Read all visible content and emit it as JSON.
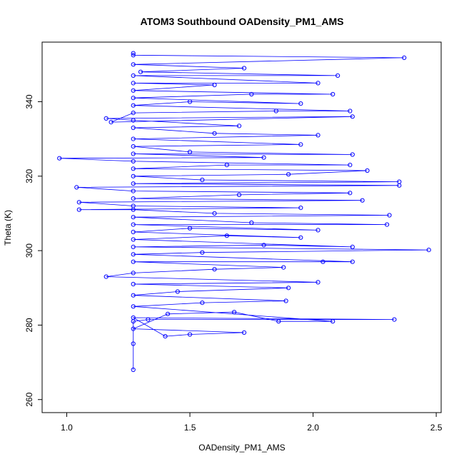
{
  "chart_data": {
    "type": "scatter",
    "title": "ATOM3 Southbound OADensity_PM1_AMS",
    "xlabel": "OADensity_PM1_AMS",
    "ylabel": "Theta (K)",
    "xlim": [
      0.9,
      2.52
    ],
    "ylim": [
      256.5,
      356
    ],
    "x_ticks": [
      1.0,
      1.5,
      2.0,
      2.5
    ],
    "x_tick_labels": [
      "1.0",
      "1.5",
      "2.0",
      "2.5"
    ],
    "y_ticks": [
      260,
      280,
      300,
      320,
      340
    ],
    "y_tick_labels": [
      "260",
      "280",
      "300",
      "320",
      "340"
    ],
    "grid": false,
    "legend": "none",
    "marker": "open-circle",
    "connected": true,
    "series_color": "#0000ff",
    "series": [
      {
        "points": [
          [
            1.27,
            268
          ],
          [
            1.27,
            275
          ],
          [
            1.27,
            281
          ],
          [
            1.33,
            281.5
          ],
          [
            2.33,
            281.5
          ],
          [
            1.27,
            282
          ],
          [
            1.4,
            277
          ],
          [
            1.5,
            277.5
          ],
          [
            1.72,
            278
          ],
          [
            1.27,
            279
          ],
          [
            1.41,
            283
          ],
          [
            1.68,
            283.5
          ],
          [
            1.86,
            281
          ],
          [
            2.08,
            281
          ],
          [
            1.27,
            285
          ],
          [
            1.55,
            286
          ],
          [
            1.89,
            286.5
          ],
          [
            1.27,
            288
          ],
          [
            1.45,
            289
          ],
          [
            1.9,
            290
          ],
          [
            1.27,
            291
          ],
          [
            2.02,
            291.5
          ],
          [
            1.16,
            293
          ],
          [
            1.27,
            294
          ],
          [
            1.6,
            295
          ],
          [
            1.88,
            295.5
          ],
          [
            1.27,
            297
          ],
          [
            2.04,
            297
          ],
          [
            2.16,
            297
          ],
          [
            1.27,
            299
          ],
          [
            1.55,
            299.5
          ],
          [
            2.47,
            300.2
          ],
          [
            1.27,
            301
          ],
          [
            1.8,
            301.5
          ],
          [
            2.16,
            301
          ],
          [
            1.27,
            303
          ],
          [
            1.65,
            304
          ],
          [
            1.95,
            303.5
          ],
          [
            1.27,
            305
          ],
          [
            1.5,
            306
          ],
          [
            2.02,
            305.5
          ],
          [
            1.27,
            307
          ],
          [
            2.3,
            307
          ],
          [
            1.75,
            307.5
          ],
          [
            1.27,
            309
          ],
          [
            2.31,
            309.5
          ],
          [
            1.6,
            310
          ],
          [
            1.27,
            311
          ],
          [
            1.05,
            311
          ],
          [
            1.95,
            311.5
          ],
          [
            1.27,
            312
          ],
          [
            1.05,
            313
          ],
          [
            2.2,
            313.5
          ],
          [
            1.27,
            314
          ],
          [
            1.7,
            315
          ],
          [
            2.15,
            315.5
          ],
          [
            1.27,
            316
          ],
          [
            1.04,
            317
          ],
          [
            2.35,
            317.5
          ],
          [
            1.27,
            318
          ],
          [
            2.35,
            318.5
          ],
          [
            1.55,
            319
          ],
          [
            1.27,
            320
          ],
          [
            1.9,
            320.5
          ],
          [
            2.22,
            321.5
          ],
          [
            1.27,
            322
          ],
          [
            1.65,
            323
          ],
          [
            2.15,
            323
          ],
          [
            1.27,
            324
          ],
          [
            0.97,
            324.8
          ],
          [
            1.8,
            325
          ],
          [
            1.27,
            326
          ],
          [
            2.16,
            325.8
          ],
          [
            1.5,
            326.5
          ],
          [
            1.27,
            328
          ],
          [
            1.95,
            328.5
          ],
          [
            1.27,
            330
          ],
          [
            2.02,
            331
          ],
          [
            1.6,
            331.5
          ],
          [
            1.27,
            333
          ],
          [
            1.7,
            333.5
          ],
          [
            1.27,
            335
          ],
          [
            1.16,
            335.5
          ],
          [
            2.16,
            336
          ],
          [
            1.18,
            334.5
          ],
          [
            1.27,
            337
          ],
          [
            1.85,
            337.5
          ],
          [
            2.15,
            337.5
          ],
          [
            1.27,
            339
          ],
          [
            1.5,
            340
          ],
          [
            1.95,
            339.5
          ],
          [
            1.27,
            341
          ],
          [
            1.75,
            342
          ],
          [
            2.08,
            342
          ],
          [
            1.27,
            343
          ],
          [
            1.6,
            344.5
          ],
          [
            1.27,
            345
          ],
          [
            2.02,
            345
          ],
          [
            1.27,
            347
          ],
          [
            2.1,
            347
          ],
          [
            1.3,
            348
          ],
          [
            1.72,
            349
          ],
          [
            1.27,
            350
          ],
          [
            2.37,
            351.8
          ],
          [
            1.27,
            352.5
          ],
          [
            1.27,
            353
          ]
        ]
      }
    ]
  }
}
